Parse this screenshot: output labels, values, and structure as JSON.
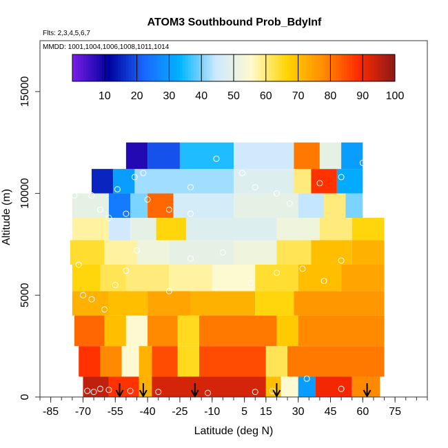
{
  "chart_data": {
    "type": "heatmap",
    "title": "ATOM3 Southbound Prob_BdyInf",
    "note_flights": "Flts: 2,3,4,5,6,7",
    "note_dates": "MMDD: 1001,1004,1006,1008,1011,1014",
    "xlabel": "Latitude (deg N)",
    "ylabel": "Altitude (m)",
    "xlim": [
      -90,
      90
    ],
    "ylim": [
      0,
      17500
    ],
    "x_ticks": [
      -85,
      -70,
      -55,
      -40,
      -25,
      -10,
      5,
      15,
      30,
      45,
      60,
      75
    ],
    "x_tick_labels": [
      "-85",
      "-70",
      "-55",
      "-40",
      "-25",
      "-10",
      "5",
      "15",
      "30",
      "45",
      "60",
      "75"
    ],
    "y_ticks": [
      0,
      5000,
      10000,
      15000
    ],
    "y_tick_labels": [
      "0",
      "5000",
      "10000",
      "15000"
    ],
    "colorbar": {
      "range": [
        0,
        100
      ],
      "ticks": [
        10,
        20,
        30,
        40,
        50,
        60,
        70,
        80,
        90,
        100
      ],
      "tick_labels": [
        "10",
        "20",
        "30",
        "40",
        "50",
        "60",
        "70",
        "80",
        "90",
        "100"
      ],
      "colors": [
        "#7b1fe8",
        "#00009c",
        "#1a66ff",
        "#00b4ff",
        "#cde8ff",
        "#fffacd",
        "#ffd400",
        "#ff8c00",
        "#ff2a00",
        "#8b1a1a"
      ]
    },
    "field_bands": [
      {
        "alt": [
          0,
          1000
        ],
        "segments": [
          [
            -70,
            -58,
            95
          ],
          [
            -58,
            -44,
            88
          ],
          [
            -44,
            -38,
            72
          ],
          [
            -38,
            15,
            93
          ],
          [
            15,
            22,
            70
          ],
          [
            22,
            30,
            55
          ],
          [
            30,
            38,
            30
          ],
          [
            38,
            55,
            90
          ],
          [
            55,
            68,
            78
          ]
        ]
      },
      {
        "alt": [
          1000,
          2500
        ],
        "segments": [
          [
            -72,
            -62,
            88
          ],
          [
            -62,
            -52,
            78
          ],
          [
            -52,
            -44,
            55
          ],
          [
            -44,
            -38,
            72
          ],
          [
            -38,
            -26,
            85
          ],
          [
            -26,
            -16,
            65
          ],
          [
            -16,
            15,
            85
          ],
          [
            15,
            25,
            62
          ],
          [
            25,
            70,
            80
          ]
        ]
      },
      {
        "alt": [
          2500,
          4000
        ],
        "segments": [
          [
            -74,
            -60,
            82
          ],
          [
            -60,
            -50,
            70
          ],
          [
            -50,
            -40,
            55
          ],
          [
            -40,
            -26,
            78
          ],
          [
            -26,
            -16,
            65
          ],
          [
            -16,
            20,
            80
          ],
          [
            20,
            30,
            68
          ],
          [
            30,
            70,
            78
          ]
        ]
      },
      {
        "alt": [
          4000,
          5200
        ],
        "segments": [
          [
            -75,
            -58,
            72
          ],
          [
            -58,
            -40,
            70
          ],
          [
            -40,
            -20,
            74
          ],
          [
            -20,
            10,
            72
          ],
          [
            10,
            28,
            66
          ],
          [
            28,
            70,
            76
          ]
        ]
      },
      {
        "alt": [
          5200,
          6500
        ],
        "segments": [
          [
            -75,
            -62,
            66
          ],
          [
            -62,
            -50,
            62
          ],
          [
            -50,
            -30,
            60
          ],
          [
            -30,
            -10,
            58
          ],
          [
            -10,
            10,
            55
          ],
          [
            10,
            30,
            64
          ],
          [
            30,
            50,
            70
          ],
          [
            50,
            70,
            74
          ]
        ]
      },
      {
        "alt": [
          6500,
          7700
        ],
        "segments": [
          [
            -76,
            -60,
            64
          ],
          [
            -60,
            -45,
            58
          ],
          [
            -45,
            -30,
            52
          ],
          [
            -30,
            0,
            50
          ],
          [
            0,
            20,
            52
          ],
          [
            20,
            36,
            62
          ],
          [
            36,
            55,
            70
          ],
          [
            55,
            70,
            72
          ]
        ]
      },
      {
        "alt": [
          7700,
          8800
        ],
        "segments": [
          [
            -75,
            -58,
            58
          ],
          [
            -58,
            -48,
            45
          ],
          [
            -48,
            -36,
            50
          ],
          [
            -36,
            -22,
            66
          ],
          [
            -22,
            20,
            48
          ],
          [
            20,
            40,
            52
          ],
          [
            40,
            55,
            60
          ],
          [
            55,
            70,
            66
          ]
        ]
      },
      {
        "alt": [
          8800,
          10000
        ],
        "segments": [
          [
            -75,
            -58,
            50
          ],
          [
            -58,
            -48,
            25
          ],
          [
            -48,
            -40,
            40
          ],
          [
            -40,
            -28,
            82
          ],
          [
            -28,
            0,
            46
          ],
          [
            0,
            30,
            50
          ],
          [
            30,
            42,
            44
          ],
          [
            42,
            52,
            60
          ],
          [
            52,
            60,
            40
          ]
        ]
      },
      {
        "alt": [
          10000,
          11200
        ],
        "segments": [
          [
            -66,
            -56,
            15
          ],
          [
            -56,
            -46,
            30
          ],
          [
            -46,
            0,
            42
          ],
          [
            0,
            28,
            48
          ],
          [
            28,
            36,
            60
          ],
          [
            36,
            48,
            88
          ],
          [
            48,
            60,
            32
          ]
        ]
      },
      {
        "alt": [
          11200,
          12500
        ],
        "segments": [
          [
            -50,
            -40,
            8
          ],
          [
            -40,
            -25,
            20
          ],
          [
            -25,
            0,
            35
          ],
          [
            0,
            28,
            45
          ],
          [
            28,
            40,
            80
          ],
          [
            40,
            50,
            50
          ],
          [
            50,
            60,
            30
          ]
        ]
      }
    ],
    "arrow_latitudes": [
      -53,
      -42,
      -18,
      20,
      62
    ],
    "points": [
      [
        -68,
        300
      ],
      [
        -65,
        250
      ],
      [
        -62,
        400
      ],
      [
        -58,
        350
      ],
      [
        -48,
        300
      ],
      [
        -35,
        250
      ],
      [
        -12,
        200
      ],
      [
        10,
        250
      ],
      [
        18,
        300
      ],
      [
        34,
        900
      ],
      [
        50,
        400
      ],
      [
        -72,
        6500
      ],
      [
        -70,
        5000
      ],
      [
        -66,
        4800
      ],
      [
        -60,
        4300
      ],
      [
        -55,
        5500
      ],
      [
        -50,
        6200
      ],
      [
        -45,
        7200
      ],
      [
        -30,
        5200
      ],
      [
        -20,
        6800
      ],
      [
        -5,
        7100
      ],
      [
        8,
        5600
      ],
      [
        20,
        6100
      ],
      [
        32,
        6300
      ],
      [
        42,
        5700
      ],
      [
        50,
        6700
      ],
      [
        -66,
        9900
      ],
      [
        -62,
        9200
      ],
      [
        -58,
        8800
      ],
      [
        -54,
        10200
      ],
      [
        -50,
        9000
      ],
      [
        -40,
        9700
      ],
      [
        -30,
        9200
      ],
      [
        -20,
        9000
      ],
      [
        -8,
        11700
      ],
      [
        4,
        11000
      ],
      [
        10,
        10300
      ],
      [
        26,
        9500
      ],
      [
        40,
        10500
      ],
      [
        50,
        10800
      ],
      [
        60,
        11500
      ],
      [
        -80,
        9900
      ],
      [
        -74,
        9900
      ],
      [
        -46,
        10800
      ],
      [
        -42,
        11000
      ],
      [
        -20,
        10300
      ],
      [
        20,
        10000
      ],
      [
        62,
        11900
      ],
      [
        64,
        11900
      ]
    ]
  }
}
